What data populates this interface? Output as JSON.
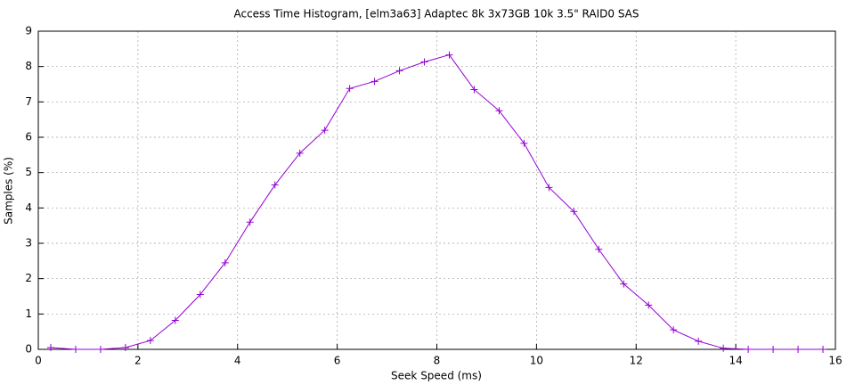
{
  "chart_data": {
    "type": "line",
    "title": "Access Time Histogram, [elm3a63] Adaptec 8k 3x73GB 10k 3.5\" RAID0 SAS",
    "x_label": "Seek Speed (ms)",
    "y_label": "Samples (%)",
    "x": [
      0.25,
      0.75,
      1.25,
      1.75,
      2.25,
      2.75,
      3.25,
      3.75,
      4.25,
      4.75,
      5.25,
      5.75,
      6.25,
      6.75,
      7.25,
      7.75,
      8.25,
      8.75,
      9.25,
      9.75,
      10.25,
      10.75,
      11.25,
      11.75,
      12.25,
      12.75,
      13.25,
      13.75,
      14.25,
      14.75,
      15.25,
      15.75
    ],
    "series": [
      {
        "color": "#9400d3",
        "values": [
          0.05,
          0,
          0,
          0.05,
          0.25,
          0.82,
          1.55,
          2.45,
          3.6,
          4.65,
          5.55,
          6.2,
          7.38,
          7.58,
          7.88,
          8.13,
          8.33,
          7.35,
          6.75,
          5.83,
          4.58,
          3.9,
          2.83,
          1.85,
          1.25,
          0.55,
          0.23,
          0.03,
          0,
          0,
          0,
          0
        ]
      }
    ],
    "xlim": [
      0,
      16
    ],
    "xticks": [
      0,
      2,
      4,
      6,
      8,
      10,
      12,
      14,
      16
    ],
    "ylim": [
      0,
      9
    ],
    "yticks": [
      0,
      1,
      2,
      3,
      4,
      5,
      6,
      7,
      8,
      9
    ],
    "grid": true
  }
}
